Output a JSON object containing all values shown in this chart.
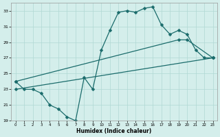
{
  "xlabel": "Humidex (Indice chaleur)",
  "bg_color": "#d4eeeb",
  "grid_color": "#b0d8d4",
  "line_color": "#1a6b6b",
  "main_curve_x": [
    0,
    1,
    2,
    3,
    4,
    5,
    6,
    7,
    8,
    9,
    10,
    11,
    12,
    13,
    14,
    15,
    16,
    17,
    18,
    19,
    20,
    21,
    22,
    23
  ],
  "main_curve_y": [
    24.0,
    23.0,
    23.0,
    22.5,
    21.0,
    20.5,
    19.5,
    19.0,
    24.5,
    23.0,
    28.0,
    30.5,
    32.8,
    33.0,
    32.8,
    33.3,
    33.5,
    31.2,
    30.0,
    30.5,
    30.0,
    28.0,
    27.0,
    27.0
  ],
  "upper_line_x": [
    0,
    20,
    21,
    23
  ],
  "upper_line_y": [
    24.0,
    29.3,
    29.3,
    27.0
  ],
  "lower_line_x": [
    0,
    23
  ],
  "lower_line_y": [
    23.0,
    27.0
  ],
  "ylim": [
    19,
    34
  ],
  "xlim": [
    -0.5,
    23.5
  ],
  "yticks": [
    19,
    21,
    23,
    25,
    27,
    29,
    31,
    33
  ],
  "xticks": [
    0,
    1,
    2,
    3,
    4,
    5,
    6,
    7,
    8,
    9,
    10,
    11,
    12,
    13,
    14,
    15,
    16,
    17,
    18,
    19,
    20,
    21,
    22,
    23
  ]
}
